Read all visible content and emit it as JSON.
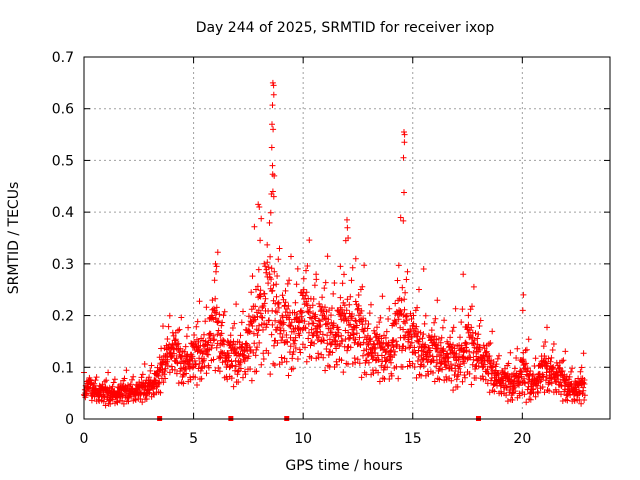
{
  "chart_data": {
    "type": "scatter",
    "title": "Day 244 of 2025, SRMTID for receiver ixop",
    "xlabel": "GPS time / hours",
    "ylabel": "SRMTID / TECUs",
    "xlim": [
      0,
      24
    ],
    "ylim": [
      0,
      0.7
    ],
    "x_ticks": [
      0,
      5,
      10,
      15,
      20
    ],
    "y_ticks": [
      0,
      0.1,
      0.2,
      0.3,
      0.4,
      0.5,
      0.6,
      0.7
    ],
    "grid": true,
    "marker": "plus",
    "series_color": "#ff0000",
    "baseline_markers_x": [
      3.45,
      6.7,
      9.25,
      18.0
    ],
    "envelope": {
      "description": "approximate median and spread of SRMTID vs GPS hour",
      "x": [
        0,
        0.5,
        1,
        1.5,
        2,
        2.5,
        3,
        3.4,
        3.7,
        4.0,
        4.5,
        5.0,
        5.5,
        6.0,
        6.5,
        7.0,
        7.5,
        8.0,
        8.5,
        9.0,
        9.5,
        10.0,
        10.5,
        11.0,
        11.5,
        12.0,
        12.5,
        13.0,
        13.5,
        14.0,
        14.5,
        15.0,
        15.5,
        16.0,
        16.5,
        17.0,
        17.5,
        18.0,
        18.5,
        19.0,
        19.5,
        20.0,
        20.5,
        21.0,
        21.5,
        22.0,
        22.5,
        22.8
      ],
      "median": [
        0.06,
        0.05,
        0.045,
        0.045,
        0.05,
        0.05,
        0.06,
        0.07,
        0.11,
        0.13,
        0.1,
        0.11,
        0.12,
        0.17,
        0.11,
        0.11,
        0.13,
        0.19,
        0.21,
        0.17,
        0.15,
        0.19,
        0.17,
        0.16,
        0.15,
        0.17,
        0.16,
        0.13,
        0.12,
        0.12,
        0.18,
        0.14,
        0.12,
        0.12,
        0.11,
        0.1,
        0.13,
        0.12,
        0.09,
        0.07,
        0.06,
        0.08,
        0.06,
        0.09,
        0.08,
        0.06,
        0.05,
        0.06
      ],
      "spread": [
        0.025,
        0.02,
        0.02,
        0.02,
        0.02,
        0.02,
        0.025,
        0.03,
        0.04,
        0.05,
        0.04,
        0.05,
        0.05,
        0.08,
        0.05,
        0.05,
        0.06,
        0.12,
        0.13,
        0.09,
        0.07,
        0.08,
        0.07,
        0.07,
        0.07,
        0.08,
        0.08,
        0.06,
        0.05,
        0.06,
        0.1,
        0.06,
        0.05,
        0.05,
        0.05,
        0.05,
        0.07,
        0.05,
        0.04,
        0.03,
        0.03,
        0.05,
        0.03,
        0.04,
        0.04,
        0.03,
        0.025,
        0.03
      ]
    },
    "peaks": [
      {
        "x": 8.62,
        "y": 0.65
      },
      {
        "x": 8.65,
        "y": 0.645
      },
      {
        "x": 8.66,
        "y": 0.627
      },
      {
        "x": 8.6,
        "y": 0.607
      },
      {
        "x": 8.58,
        "y": 0.57
      },
      {
        "x": 8.63,
        "y": 0.56
      },
      {
        "x": 8.57,
        "y": 0.525
      },
      {
        "x": 8.6,
        "y": 0.49
      },
      {
        "x": 8.68,
        "y": 0.47
      },
      {
        "x": 8.62,
        "y": 0.44
      },
      {
        "x": 8.66,
        "y": 0.43
      },
      {
        "x": 8.55,
        "y": 0.435
      },
      {
        "x": 7.95,
        "y": 0.415
      },
      {
        "x": 8.0,
        "y": 0.41
      },
      {
        "x": 14.6,
        "y": 0.555
      },
      {
        "x": 14.63,
        "y": 0.55
      },
      {
        "x": 14.62,
        "y": 0.535
      },
      {
        "x": 14.58,
        "y": 0.505
      },
      {
        "x": 14.6,
        "y": 0.438
      },
      {
        "x": 14.57,
        "y": 0.383
      },
      {
        "x": 12.0,
        "y": 0.385
      },
      {
        "x": 12.02,
        "y": 0.37
      },
      {
        "x": 12.05,
        "y": 0.35
      },
      {
        "x": 12.4,
        "y": 0.31
      },
      {
        "x": 15.5,
        "y": 0.29
      },
      {
        "x": 17.3,
        "y": 0.28
      },
      {
        "x": 20.05,
        "y": 0.24
      },
      {
        "x": 20.02,
        "y": 0.21
      },
      {
        "x": 6.0,
        "y": 0.3
      },
      {
        "x": 6.05,
        "y": 0.295
      },
      {
        "x": 11.7,
        "y": 0.295
      },
      {
        "x": 10.6,
        "y": 0.27
      }
    ],
    "n_points": 2000,
    "x_end": 22.85
  }
}
